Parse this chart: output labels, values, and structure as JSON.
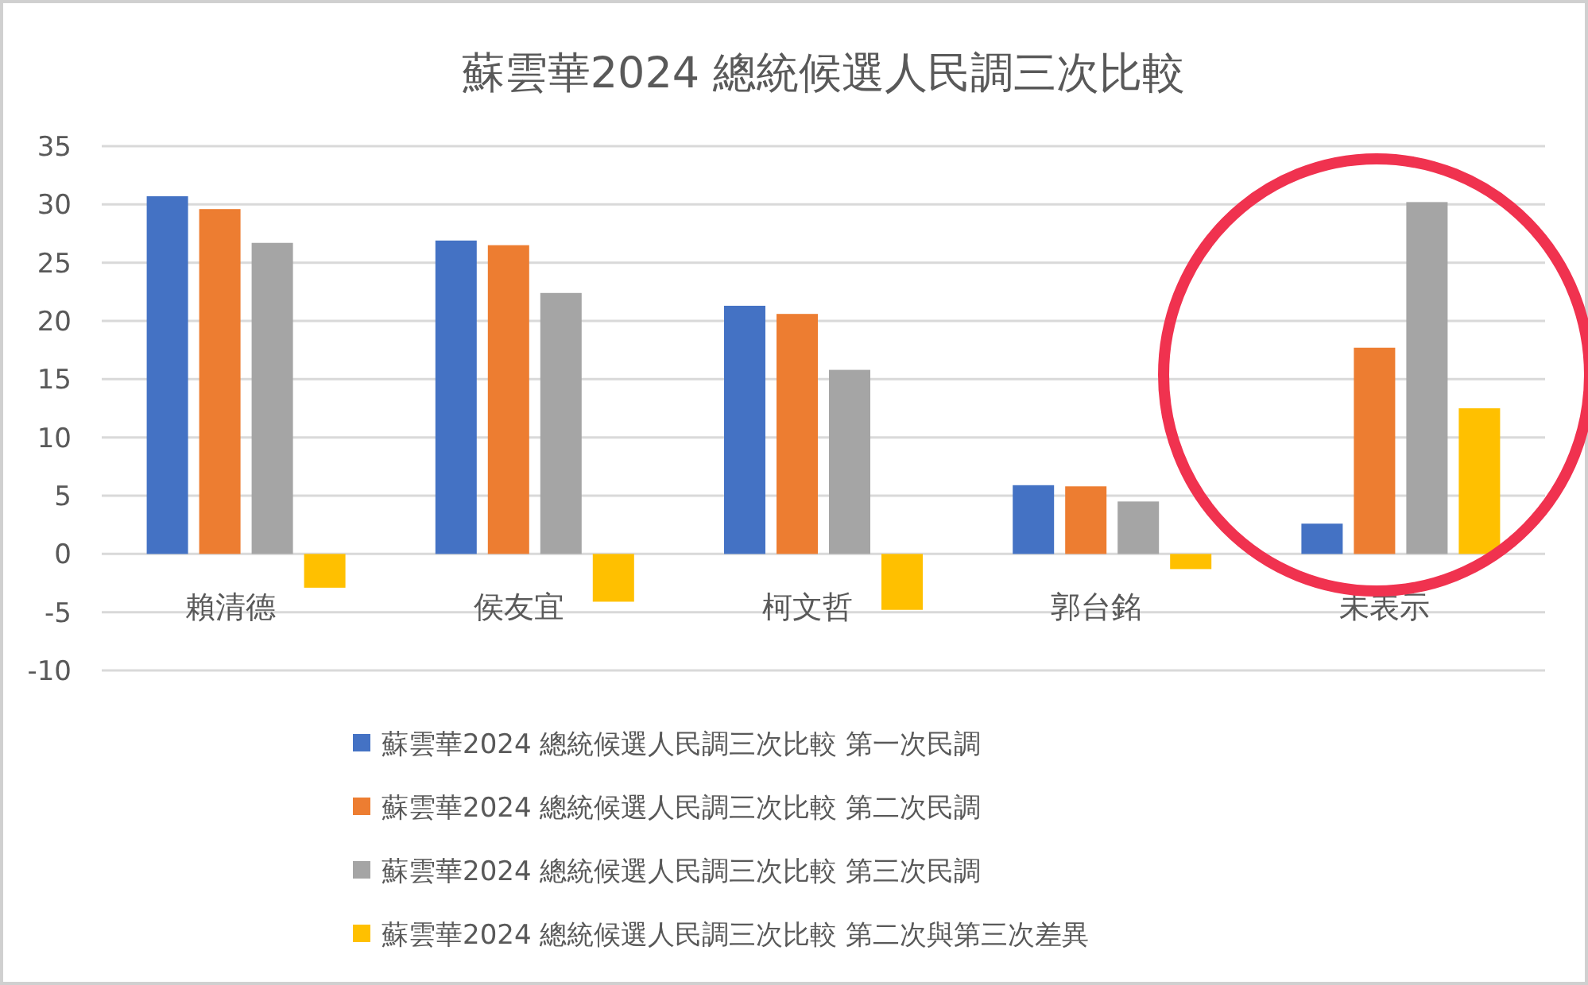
{
  "chart_data": {
    "type": "bar",
    "title": "蘇雲華2024 總統候選人民調三次比較",
    "categories": [
      "賴清德",
      "侯友宜",
      "柯文哲",
      "郭台銘",
      "未表示"
    ],
    "series": [
      {
        "name": "蘇雲華2024 總統候選人民調三次比較 第一次民調",
        "color": "#4472c4",
        "values": [
          30.7,
          26.9,
          21.3,
          5.9,
          2.6
        ]
      },
      {
        "name": "蘇雲華2024 總統候選人民調三次比較 第二次民調",
        "color": "#ed7d31",
        "values": [
          29.6,
          26.5,
          20.6,
          5.8,
          17.7
        ]
      },
      {
        "name": "蘇雲華2024 總統候選人民調三次比較 第三次民調",
        "color": "#a5a5a5",
        "values": [
          26.7,
          22.4,
          15.8,
          4.5,
          30.2
        ]
      },
      {
        "name": "蘇雲華2024 總統候選人民調三次比較 第二次與第三次差異",
        "color": "#ffc000",
        "values": [
          -2.9,
          -4.1,
          -4.8,
          -1.3,
          12.5
        ]
      }
    ],
    "ylim": [
      -10,
      35
    ],
    "yticks": [
      {
        "value": -10,
        "label": "-10"
      },
      {
        "value": -5,
        "label": "-5"
      },
      0,
      5,
      10,
      15,
      20,
      25,
      30,
      35
    ],
    "grid": "y",
    "legend": "bottom"
  }
}
